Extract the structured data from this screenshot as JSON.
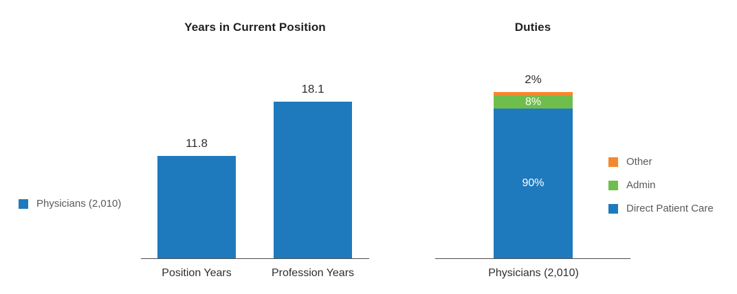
{
  "chart_data": [
    {
      "type": "bar",
      "title": "Years in Current Position",
      "categories": [
        "Position Years",
        "Profession Years"
      ],
      "values": [
        11.8,
        18.1
      ],
      "value_labels": [
        "11.8",
        "18.1"
      ],
      "series_name": "Physicians (2,010)",
      "bar_color": "#1f7abd",
      "ylim": [
        0,
        20
      ],
      "grid": false,
      "axis_color": "#4a4a4c",
      "legend_position": "left",
      "legend": [
        {
          "label": "Physicians (2,010)",
          "color": "#1f7abd"
        }
      ]
    },
    {
      "type": "bar",
      "subtype": "stacked-percent",
      "title": "Duties",
      "categories": [
        "Physicians (2,010)"
      ],
      "series": [
        {
          "name": "Direct Patient Care",
          "values": [
            90
          ],
          "label": "90%",
          "color": "#1f7abd"
        },
        {
          "name": "Admin",
          "values": [
            8
          ],
          "label": "8%",
          "color": "#6fbe4c"
        },
        {
          "name": "Other",
          "values": [
            2
          ],
          "label": "2%",
          "color": "#f6872e"
        }
      ],
      "ylim": [
        0,
        100
      ],
      "grid": false,
      "axis_color": "#4a4a4c",
      "legend_position": "right",
      "legend": [
        {
          "label": "Other",
          "color": "#f6872e"
        },
        {
          "label": "Admin",
          "color": "#6fbe4c"
        },
        {
          "label": "Direct Patient Care",
          "color": "#1f7abd"
        }
      ]
    }
  ]
}
